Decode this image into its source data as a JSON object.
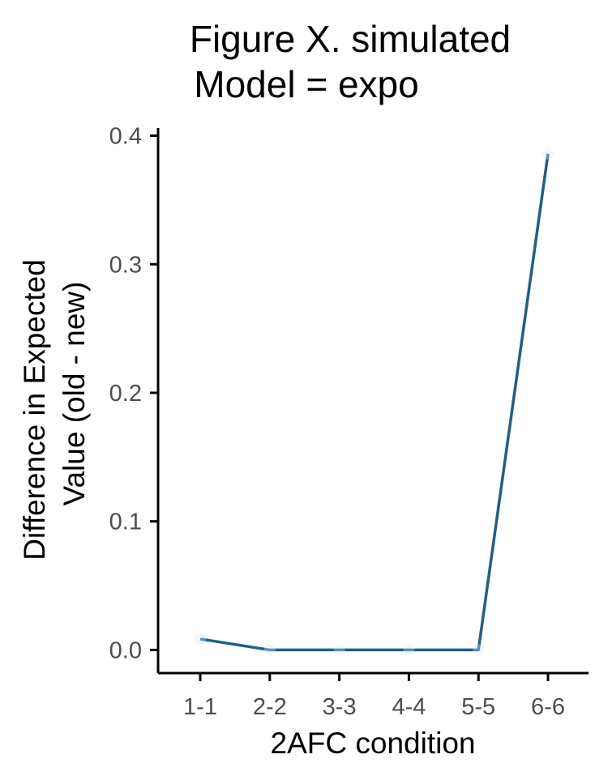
{
  "chart_data": {
    "type": "line",
    "title_lines": [
      "Figure X. simulated",
      "Model = expo"
    ],
    "xlabel": "2AFC condition",
    "ylabel_lines": [
      "Difference in Expected",
      "Value (old - new)"
    ],
    "categories": [
      "1-1",
      "2-2",
      "3-3",
      "4-4",
      "5-5",
      "6-6"
    ],
    "series": [
      {
        "values": [
          0.0085,
          0.0,
          0.0,
          0.0,
          0.0,
          0.386
        ],
        "color": "#1f5f8b"
      }
    ],
    "ylim": [
      -0.018,
      0.406
    ],
    "yticks": [
      0.0,
      0.1,
      0.2,
      0.3,
      0.4
    ],
    "ytick_labels": [
      "0.0",
      "0.1",
      "0.2",
      "0.3",
      "0.4"
    ],
    "grid": false,
    "legend": "none"
  }
}
